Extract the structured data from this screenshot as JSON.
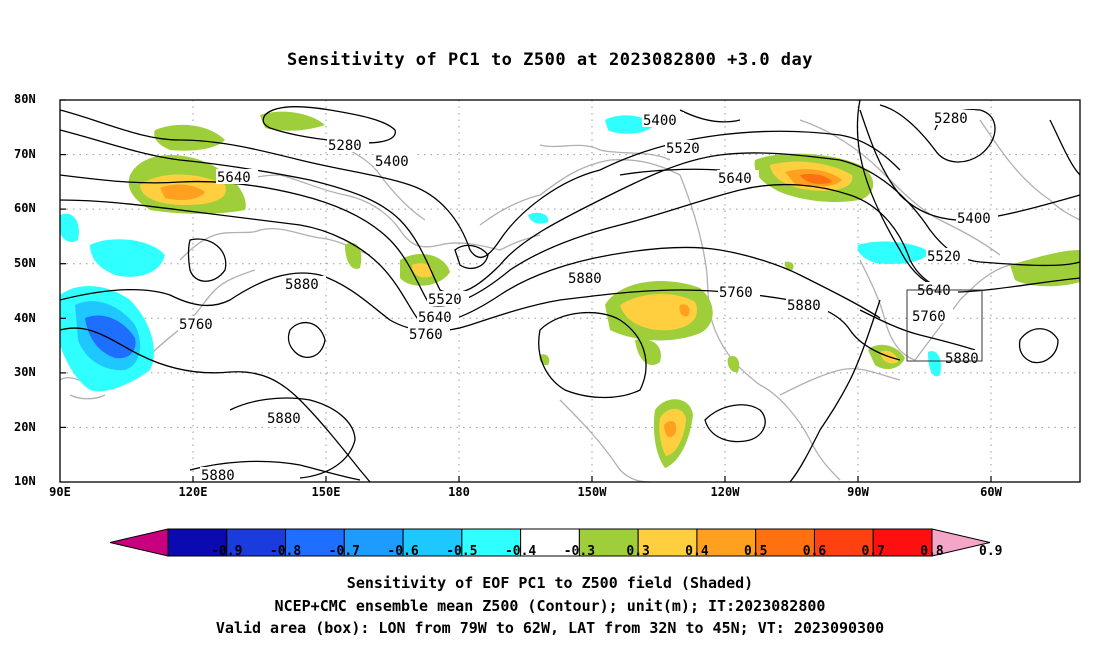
{
  "title": "Sensitivity of PC1 to Z500 at 2023082800 +3.0 day",
  "lat_labels": [
    "80N",
    "70N",
    "60N",
    "50N",
    "40N",
    "30N",
    "20N",
    "10N"
  ],
  "lon_labels": [
    "90E",
    "120E",
    "150E",
    "180",
    "150W",
    "120W",
    "90W",
    "60W"
  ],
  "contour_labels": [
    "5280",
    "5400",
    "5640",
    "5520",
    "5760",
    "5880"
  ],
  "colorbar": {
    "labels": [
      "-0.9",
      "-0.8",
      "-0.7",
      "-0.6",
      "-0.5",
      "-0.4",
      "-0.3",
      "0.3",
      "0.4",
      "0.5",
      "0.6",
      "0.7",
      "0.8",
      "0.9"
    ],
    "colors": [
      "#c8007f",
      "#0a0ab0",
      "#1a3cdc",
      "#1e6eff",
      "#1e9bff",
      "#1ec8ff",
      "#30ffff",
      "#ffffff",
      "#9ecf3a",
      "#ffcf40",
      "#ffa020",
      "#ff7010",
      "#ff4010",
      "#ff1010",
      "#f4a6c8"
    ]
  },
  "caption": {
    "line1": "Sensitivity of EOF PC1 to Z500 field (Shaded)",
    "line2": "NCEP+CMC ensemble mean Z500 (Contour); unit(m); IT:2023082800",
    "line3": "Valid area (box): LON from 79W to 62W, LAT from 32N to 45N; VT: 2023090300"
  }
}
